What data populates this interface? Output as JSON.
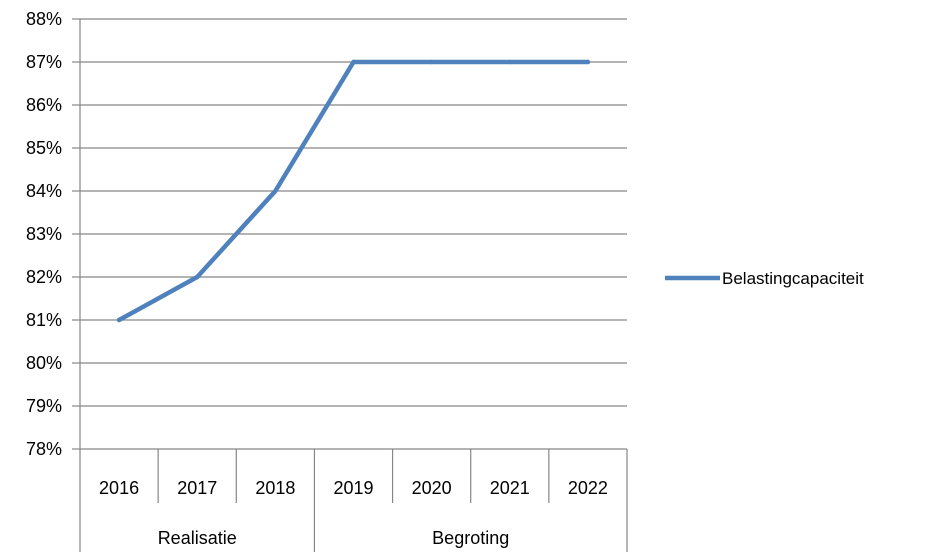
{
  "chart_data": {
    "type": "line",
    "categories": [
      "2016",
      "2017",
      "2018",
      "2019",
      "2020",
      "2021",
      "2022"
    ],
    "category_groups": [
      {
        "label": "Realisatie",
        "span": 3
      },
      {
        "label": "Begroting",
        "span": 4
      }
    ],
    "series": [
      {
        "name": "Belastingcapaciteit",
        "values": [
          81,
          82,
          84,
          87,
          87,
          87,
          87
        ],
        "color": "#4f81bd"
      }
    ],
    "ylim": [
      78,
      88
    ],
    "y_ticks": [
      "78%",
      "79%",
      "80%",
      "81%",
      "82%",
      "83%",
      "84%",
      "85%",
      "86%",
      "87%",
      "88%"
    ],
    "y_unit": "%",
    "grid": true,
    "legend": "right",
    "gridline_color": "#868686"
  }
}
